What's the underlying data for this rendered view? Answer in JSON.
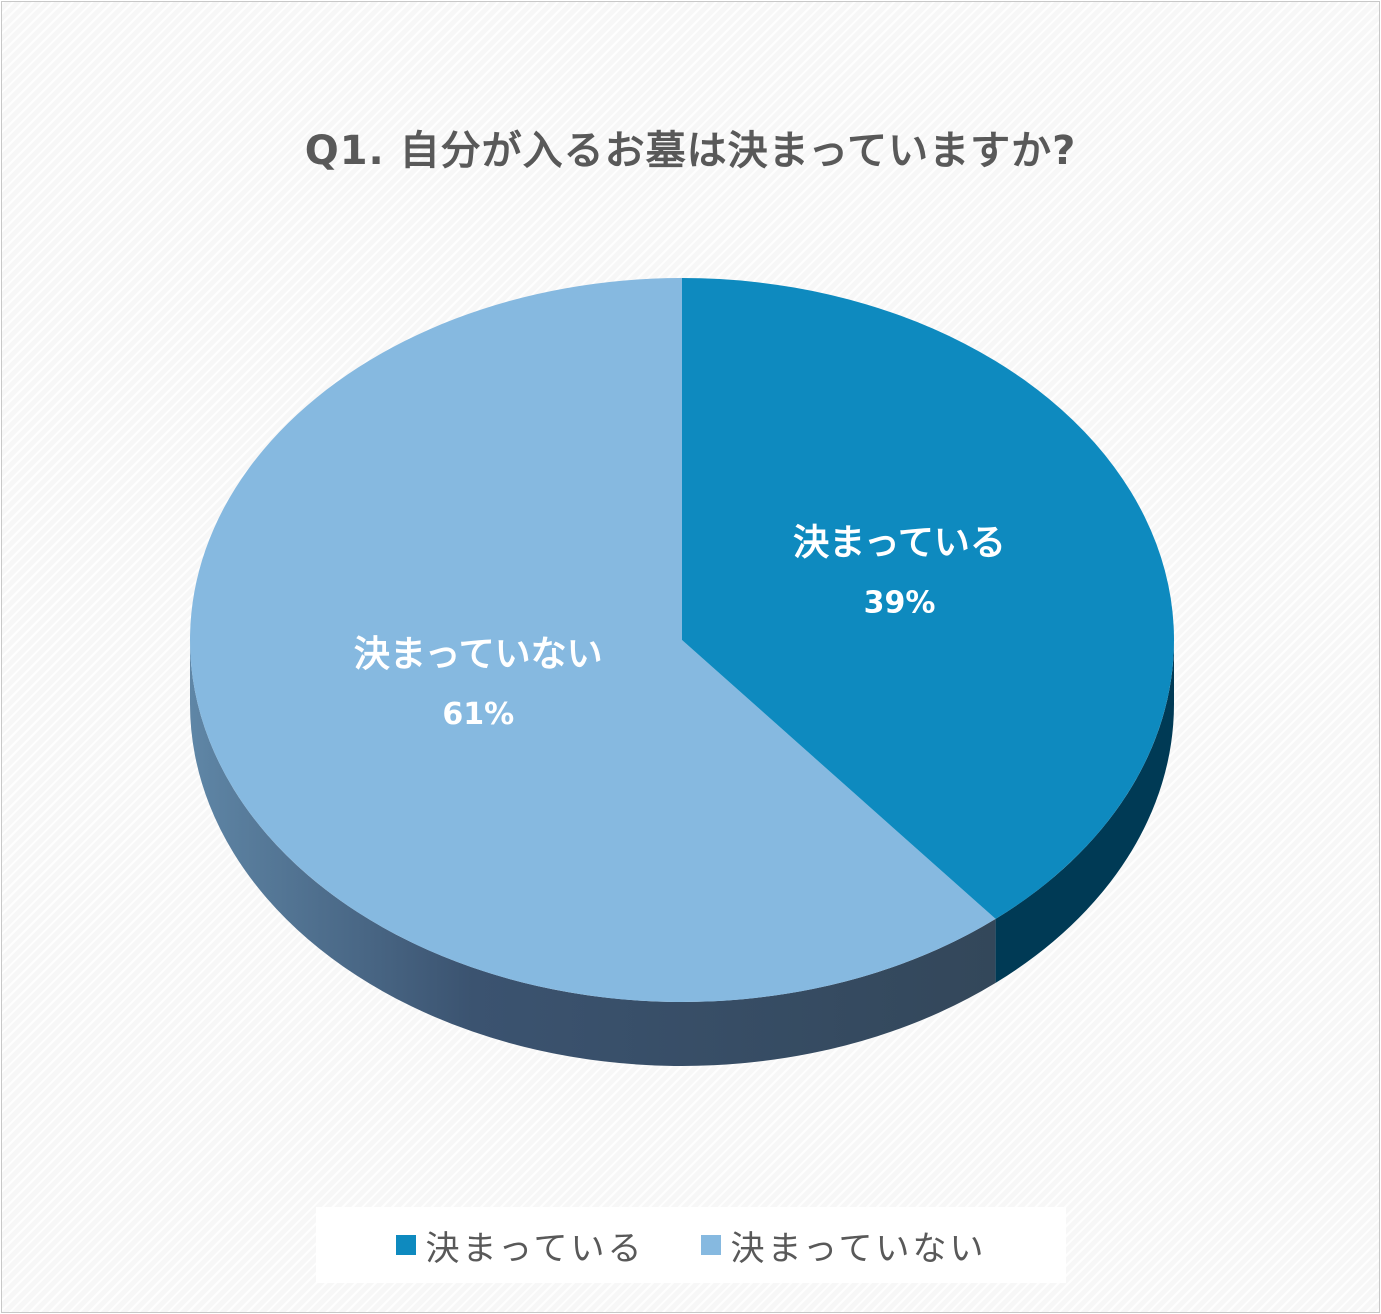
{
  "chart_data": {
    "type": "pie",
    "title": "Q1. 自分が入るお墓は決まっていますか?",
    "slices": [
      {
        "label": "決まっている",
        "value": 39,
        "value_label": "39%",
        "color": "#0e8abf"
      },
      {
        "label": "決まっていない",
        "value": 61,
        "value_label": "61%",
        "color": "#86b9e0"
      }
    ],
    "legend": {
      "position": "bottom",
      "items": [
        {
          "label": "決まっている",
          "color": "#0e8abf"
        },
        {
          "label": "決まっていない",
          "color": "#86b9e0"
        }
      ]
    },
    "style": "3d",
    "side_colors": [
      "#003a55",
      "#35495c"
    ]
  }
}
